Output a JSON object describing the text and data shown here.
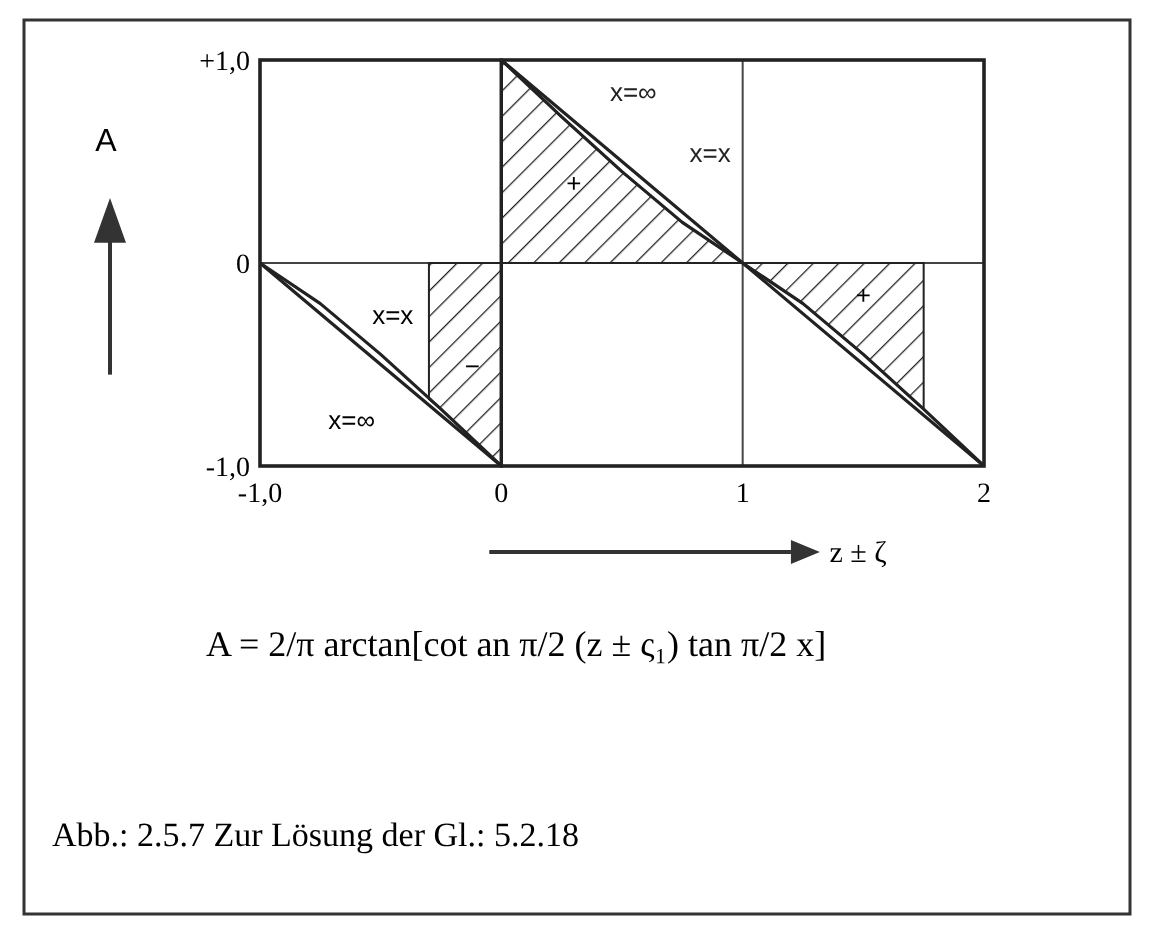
{
  "chart_data": {
    "type": "line",
    "xlabel": "z ± ζ",
    "ylabel": "A",
    "xlim": [
      -1,
      2
    ],
    "ylim": [
      -1,
      1
    ],
    "xticks": [
      {
        "value": -1,
        "label": "-1,0"
      },
      0,
      1,
      2
    ],
    "yticks": [
      {
        "value": -1,
        "label": "-1,0"
      },
      0,
      {
        "value": 1,
        "label": "+1,0"
      }
    ],
    "grid": true,
    "marker": "none",
    "line_style": "solid",
    "series": [
      {
        "name": "x=∞",
        "color": "#222222",
        "x": [
          -1,
          0,
          0,
          2
        ],
        "values": [
          0,
          -1,
          1,
          -1
        ]
      },
      {
        "name": "x=x",
        "color": "#222222",
        "x": [
          -1,
          -0.75,
          -0.5,
          -0.25,
          0,
          0,
          0.25,
          0.5,
          0.75,
          1,
          1.25,
          1.5,
          1.75,
          2
        ],
        "values": [
          0,
          -0.2,
          -0.45,
          -0.72,
          -1,
          1,
          0.72,
          0.45,
          0.2,
          0,
          -0.2,
          -0.45,
          -0.72,
          -1
        ]
      },
      {
        "type": "area",
        "color": "#222222",
        "x": [
          -0.3,
          -0.25,
          0
        ],
        "values": [
          -0.67,
          -0.72,
          -1
        ]
      },
      {
        "type": "area",
        "color": "#222222",
        "x": [
          0,
          0.25,
          0.5,
          0.75,
          1
        ],
        "values": [
          1,
          0.72,
          0.45,
          0.2,
          0
        ]
      },
      {
        "type": "area",
        "color": "#222222",
        "x": [
          1,
          1.25,
          1.5,
          1.75
        ],
        "values": [
          0,
          -0.2,
          -0.45,
          -0.72
        ]
      }
    ],
    "annotations": [
      "x=x",
      "x=∞",
      "+",
      "−",
      "+",
      "A = 2/π arctan[cot an π/2 (z ± ς₁) tan π/2 x]",
      "Abb.: 2.5.7  Zur Lösung der Gl.: 5.2.18"
    ]
  }
}
